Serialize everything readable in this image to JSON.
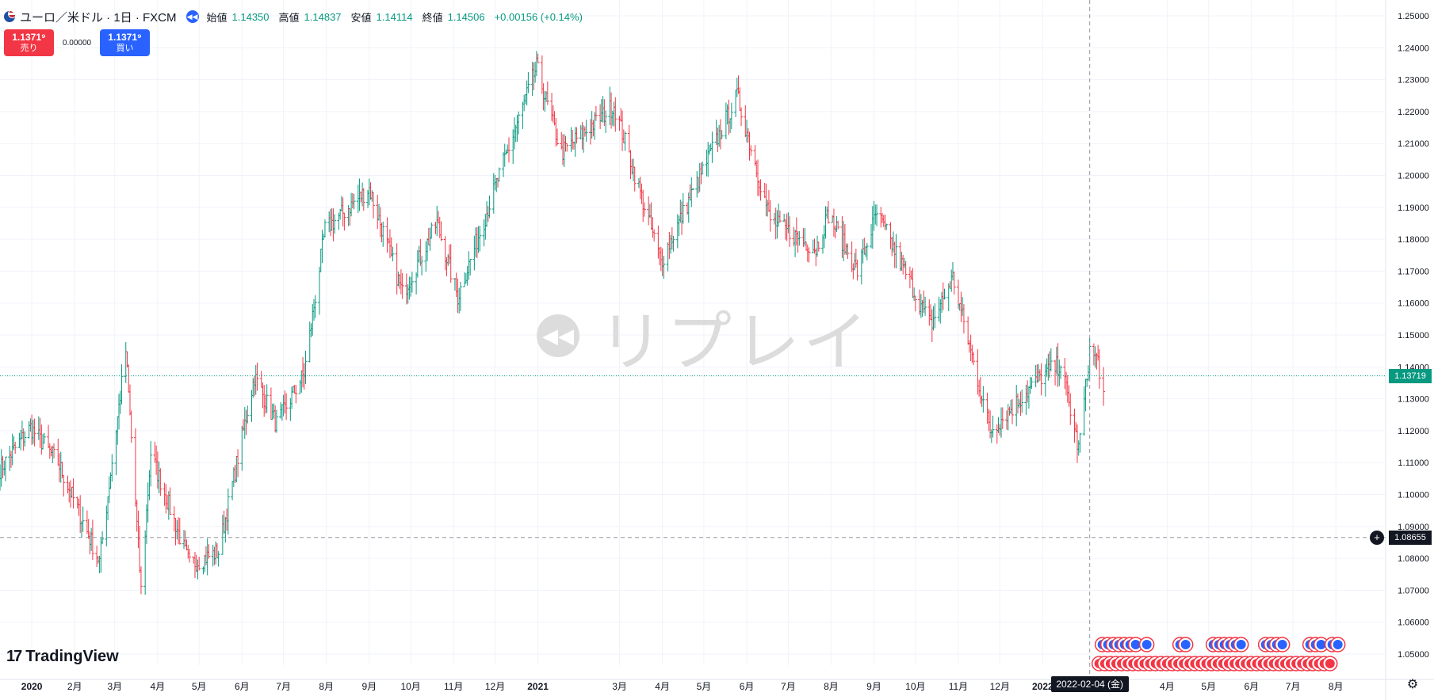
{
  "legend": {
    "symbol_title": "ユーロ／米ドル · 1日 · FXCM",
    "open_label": "始値",
    "open_value": "1.14350",
    "high_label": "高値",
    "high_value": "1.14837",
    "low_label": "安値",
    "low_value": "1.14114",
    "close_label": "終値",
    "close_value": "1.14506",
    "change": "+0.00156 (+0.14%)",
    "symbol_icon": "eur-usd-flag-icon",
    "replay_icon": "replay-icon"
  },
  "trade": {
    "sell_price": "1.1371⁹",
    "sell_label": "売り",
    "spread": "0.00000",
    "buy_price": "1.1371⁹",
    "buy_label": "買い"
  },
  "watermark": {
    "text": "リプレイ",
    "icon": "replay-icon"
  },
  "logo": {
    "mark": "17",
    "text": "TradingView"
  },
  "crosshair": {
    "date_label": "2022-02-04 (金)",
    "price_label": "1.08655",
    "add_icon": "plus-circle-icon"
  },
  "current_price": {
    "label": "1.13719"
  },
  "settings_icon": "gear-icon",
  "colors": {
    "up": "#089981",
    "down": "#f23645",
    "grid": "#f0f3fa",
    "current_line": "#089981",
    "crosshair": "#9598a1",
    "event_eu": "#2962ff",
    "event_us": "#f23645"
  },
  "chart_data": {
    "type": "ohlc",
    "symbol": "EUR/USD",
    "interval": "1D",
    "ylim": [
      1.045,
      1.255
    ],
    "y_ticks": [
      "1.25000",
      "1.24000",
      "1.23000",
      "1.22000",
      "1.21000",
      "1.20000",
      "1.19000",
      "1.18000",
      "1.17000",
      "1.16000",
      "1.15000",
      "1.14000",
      "1.13000",
      "1.12000",
      "1.11000",
      "1.10000",
      "1.09000",
      "1.08000",
      "1.07000",
      "1.06000",
      "1.05000"
    ],
    "x_ticks": [
      "2月",
      "2020",
      "3月",
      "4月",
      "5月",
      "6月",
      "7月",
      "8月",
      "9月",
      "10月",
      "11月",
      "12月",
      "2021",
      "3月",
      "4月",
      "5月",
      "6月",
      "7月",
      "8月",
      "9月",
      "10月",
      "11月",
      "12月",
      "2022",
      "4月",
      "5月",
      "6月",
      "7月",
      "8月"
    ],
    "x_tick_dates": [
      "2020-02-01",
      "2020-01-01",
      "2020-03-01",
      "2020-04-01",
      "2020-05-01",
      "2020-06-01",
      "2020-07-01",
      "2020-08-01",
      "2020-09-01",
      "2020-10-01",
      "2020-11-01",
      "2020-12-01",
      "2021-01-01",
      "2021-03-01",
      "2021-04-01",
      "2021-05-01",
      "2021-06-01",
      "2021-07-01",
      "2021-08-01",
      "2021-09-01",
      "2021-10-01",
      "2021-11-01",
      "2021-12-01",
      "2022-01-01",
      "2022-04-01",
      "2022-05-01",
      "2022-06-01",
      "2022-07-01",
      "2022-08-01"
    ],
    "bold_ticks": [
      "2020",
      "2021",
      "2022"
    ],
    "x_start": "2019-12-09",
    "x_end": "2022-09-06",
    "series": [
      {
        "name": "EUR/USD",
        "key_closes": [
          [
            "2019-12-09",
            1.108
          ],
          [
            "2019-12-31",
            1.121
          ],
          [
            "2020-01-20",
            1.11
          ],
          [
            "2020-02-19",
            1.079
          ],
          [
            "2020-03-09",
            1.145
          ],
          [
            "2020-03-20",
            1.07
          ],
          [
            "2020-03-27",
            1.113
          ],
          [
            "2020-04-24",
            1.078
          ],
          [
            "2020-05-15",
            1.082
          ],
          [
            "2020-06-10",
            1.137
          ],
          [
            "2020-06-26",
            1.122
          ],
          [
            "2020-07-16",
            1.138
          ],
          [
            "2020-07-31",
            1.183
          ],
          [
            "2020-09-01",
            1.196
          ],
          [
            "2020-09-25",
            1.163
          ],
          [
            "2020-10-20",
            1.185
          ],
          [
            "2020-11-04",
            1.162
          ],
          [
            "2020-12-31",
            1.234
          ],
          [
            "2021-01-18",
            1.207
          ],
          [
            "2021-02-25",
            1.222
          ],
          [
            "2021-03-31",
            1.173
          ],
          [
            "2021-05-25",
            1.225
          ],
          [
            "2021-06-18",
            1.186
          ],
          [
            "2021-07-21",
            1.177
          ],
          [
            "2021-07-30",
            1.188
          ],
          [
            "2021-08-20",
            1.17
          ],
          [
            "2021-09-03",
            1.188
          ],
          [
            "2021-10-12",
            1.153
          ],
          [
            "2021-10-28",
            1.168
          ],
          [
            "2021-11-24",
            1.12
          ],
          [
            "2021-12-31",
            1.137
          ],
          [
            "2022-01-14",
            1.141
          ],
          [
            "2022-01-27",
            1.114
          ],
          [
            "2022-02-04",
            1.145
          ],
          [
            "2022-02-10",
            1.142
          ],
          [
            "2022-02-14",
            1.131
          ]
        ]
      }
    ],
    "current_price": 1.13719,
    "crosshair_price": 1.08655,
    "crosshair_date": "2022-02-04"
  }
}
